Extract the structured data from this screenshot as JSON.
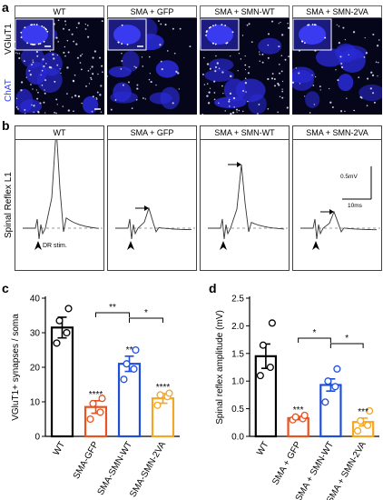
{
  "panel_a": {
    "letter": "a",
    "row_label_top": "VGluT1",
    "row_label_bottom": "ChAT",
    "groups": [
      "WT",
      "SMA + GFP",
      "SMA + SMN-WT",
      "SMA + SMN-2VA"
    ]
  },
  "panel_b": {
    "letter": "b",
    "row_label": "Spinal Reflex L1",
    "groups": [
      "WT",
      "SMA + GFP",
      "SMA + SMN-WT",
      "SMA + SMN-2VA"
    ],
    "stim_label": "DR stim.",
    "scale_v": "0.5mV",
    "scale_t": "10ms"
  },
  "chart_data": [
    {
      "panel": "c",
      "type": "bar",
      "categories": [
        "WT",
        "SMA-GFP",
        "SMA-SMN-WT",
        "SMA-SMN-2VA"
      ],
      "values": [
        31.5,
        8.5,
        21.0,
        11.0
      ],
      "errors": [
        3.0,
        1.8,
        2.2,
        1.4
      ],
      "points": [
        [
          27,
          30,
          33.5,
          37
        ],
        [
          5,
          7,
          9.5,
          11
        ],
        [
          16.5,
          19.5,
          21,
          25
        ],
        [
          9,
          11.5,
          12,
          12.5
        ]
      ],
      "colors": [
        "#000000",
        "#e8531f",
        "#1f4fd8",
        "#f5a623"
      ],
      "significance": [
        "",
        "****",
        "**",
        "****"
      ],
      "brackets": [
        {
          "from": 1,
          "to": 2,
          "label": "**"
        },
        {
          "from": 2,
          "to": 3,
          "label": "*"
        }
      ],
      "ylabel": "VGluT1+ synapses / soma",
      "ylim": [
        0,
        40
      ],
      "yticks": [
        0,
        10,
        20,
        30,
        40
      ]
    },
    {
      "panel": "d",
      "type": "bar",
      "categories": [
        "WT",
        "SMA + GFP",
        "SMA + SMN-WT",
        "SMA + SMN-2VA"
      ],
      "values": [
        1.45,
        0.33,
        0.93,
        0.26
      ],
      "errors": [
        0.22,
        0.03,
        0.11,
        0.07
      ],
      "points": [
        [
          1.1,
          1.25,
          1.65,
          2.05
        ],
        [
          0.3,
          0.32,
          0.35,
          0.38
        ],
        [
          0.62,
          0.9,
          1.0,
          1.22
        ],
        [
          0.1,
          0.2,
          0.28,
          0.46
        ]
      ],
      "colors": [
        "#000000",
        "#e8531f",
        "#1f4fd8",
        "#f5a623"
      ],
      "significance": [
        "",
        "***",
        "",
        "***"
      ],
      "brackets": [
        {
          "from": 1,
          "to": 2,
          "label": "*"
        },
        {
          "from": 2,
          "to": 3,
          "label": "*"
        }
      ],
      "ylabel": "Spinal reflex amplitude (mV)",
      "ylim": [
        0,
        2.5
      ],
      "yticks": [
        0.0,
        0.5,
        1.0,
        1.5,
        2.0,
        2.5
      ]
    }
  ]
}
